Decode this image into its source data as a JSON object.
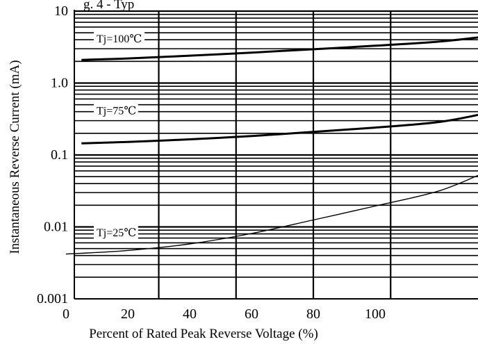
{
  "chart_data": {
    "type": "line",
    "title": "g. 4 - Typ",
    "xlabel": "Percent of Rated Peak Reverse Voltage (%)",
    "ylabel": "Instantaneous Reverse Current (mA)",
    "x_scale": "linear",
    "y_scale": "log",
    "xlim": [
      0,
      140
    ],
    "ylim": [
      0.001,
      10
    ],
    "x_ticks": [
      {
        "value": 0,
        "label": "0"
      },
      {
        "value": 20,
        "label": "20"
      },
      {
        "value": 40,
        "label": "40"
      },
      {
        "value": 60,
        "label": "60"
      },
      {
        "value": 80,
        "label": "80"
      },
      {
        "value": 100,
        "label": "100"
      }
    ],
    "y_ticks": [
      {
        "value": 0.001,
        "label": "0.001"
      },
      {
        "value": 0.01,
        "label": "0.01"
      },
      {
        "value": 0.1,
        "label": "0.1"
      },
      {
        "value": 1,
        "label": "1.0"
      },
      {
        "value": 10,
        "label": "10"
      }
    ],
    "x_grid": [
      30,
      55,
      80,
      105
    ],
    "grid": true,
    "series": [
      {
        "name": "Tj=100℃",
        "thick": true,
        "x": [
          5,
          20,
          40,
          60,
          80,
          100,
          120,
          140
        ],
        "y": [
          2.1,
          2.2,
          2.4,
          2.65,
          2.95,
          3.3,
          3.75,
          4.3
        ]
      },
      {
        "name": "Tj=75℃",
        "thick": true,
        "x": [
          5,
          20,
          40,
          60,
          80,
          100,
          120,
          140
        ],
        "y": [
          0.145,
          0.152,
          0.165,
          0.183,
          0.21,
          0.24,
          0.285,
          0.36
        ]
      },
      {
        "name": "Tj=25℃",
        "thick": false,
        "x": [
          0,
          20,
          40,
          60,
          80,
          100,
          120,
          140
        ],
        "y": [
          0.0042,
          0.0047,
          0.0058,
          0.0081,
          0.0125,
          0.0195,
          0.031,
          0.052
        ]
      }
    ]
  }
}
